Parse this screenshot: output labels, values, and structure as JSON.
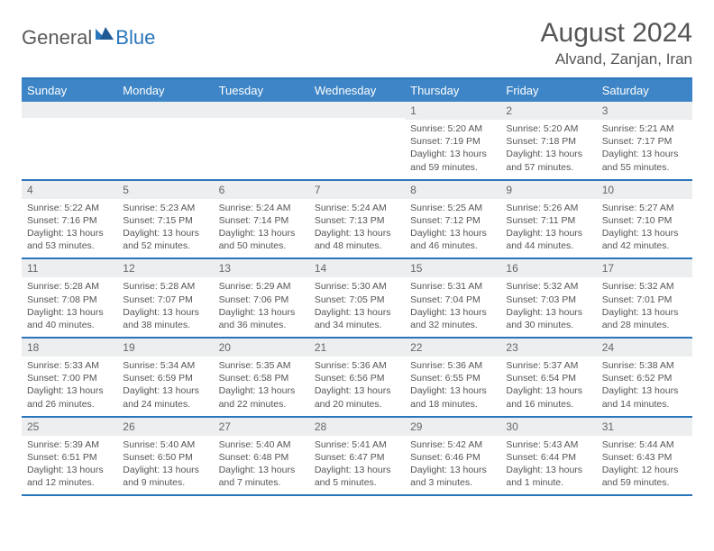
{
  "logo": {
    "text1": "General",
    "text2": "Blue"
  },
  "title": "August 2024",
  "location": "Alvand, Zanjan, Iran",
  "colors": {
    "header_bg": "#3d85c6",
    "border": "#2a75bb",
    "daynum_bg": "#eceeef",
    "text": "#555555",
    "logo_gray": "#5a5a5a",
    "logo_blue": "#2a75bb"
  },
  "dow": [
    "Sunday",
    "Monday",
    "Tuesday",
    "Wednesday",
    "Thursday",
    "Friday",
    "Saturday"
  ],
  "weeks": [
    [
      {
        "n": "",
        "sr": "",
        "ss": "",
        "dl": ""
      },
      {
        "n": "",
        "sr": "",
        "ss": "",
        "dl": ""
      },
      {
        "n": "",
        "sr": "",
        "ss": "",
        "dl": ""
      },
      {
        "n": "",
        "sr": "",
        "ss": "",
        "dl": ""
      },
      {
        "n": "1",
        "sr": "Sunrise: 5:20 AM",
        "ss": "Sunset: 7:19 PM",
        "dl": "Daylight: 13 hours and 59 minutes."
      },
      {
        "n": "2",
        "sr": "Sunrise: 5:20 AM",
        "ss": "Sunset: 7:18 PM",
        "dl": "Daylight: 13 hours and 57 minutes."
      },
      {
        "n": "3",
        "sr": "Sunrise: 5:21 AM",
        "ss": "Sunset: 7:17 PM",
        "dl": "Daylight: 13 hours and 55 minutes."
      }
    ],
    [
      {
        "n": "4",
        "sr": "Sunrise: 5:22 AM",
        "ss": "Sunset: 7:16 PM",
        "dl": "Daylight: 13 hours and 53 minutes."
      },
      {
        "n": "5",
        "sr": "Sunrise: 5:23 AM",
        "ss": "Sunset: 7:15 PM",
        "dl": "Daylight: 13 hours and 52 minutes."
      },
      {
        "n": "6",
        "sr": "Sunrise: 5:24 AM",
        "ss": "Sunset: 7:14 PM",
        "dl": "Daylight: 13 hours and 50 minutes."
      },
      {
        "n": "7",
        "sr": "Sunrise: 5:24 AM",
        "ss": "Sunset: 7:13 PM",
        "dl": "Daylight: 13 hours and 48 minutes."
      },
      {
        "n": "8",
        "sr": "Sunrise: 5:25 AM",
        "ss": "Sunset: 7:12 PM",
        "dl": "Daylight: 13 hours and 46 minutes."
      },
      {
        "n": "9",
        "sr": "Sunrise: 5:26 AM",
        "ss": "Sunset: 7:11 PM",
        "dl": "Daylight: 13 hours and 44 minutes."
      },
      {
        "n": "10",
        "sr": "Sunrise: 5:27 AM",
        "ss": "Sunset: 7:10 PM",
        "dl": "Daylight: 13 hours and 42 minutes."
      }
    ],
    [
      {
        "n": "11",
        "sr": "Sunrise: 5:28 AM",
        "ss": "Sunset: 7:08 PM",
        "dl": "Daylight: 13 hours and 40 minutes."
      },
      {
        "n": "12",
        "sr": "Sunrise: 5:28 AM",
        "ss": "Sunset: 7:07 PM",
        "dl": "Daylight: 13 hours and 38 minutes."
      },
      {
        "n": "13",
        "sr": "Sunrise: 5:29 AM",
        "ss": "Sunset: 7:06 PM",
        "dl": "Daylight: 13 hours and 36 minutes."
      },
      {
        "n": "14",
        "sr": "Sunrise: 5:30 AM",
        "ss": "Sunset: 7:05 PM",
        "dl": "Daylight: 13 hours and 34 minutes."
      },
      {
        "n": "15",
        "sr": "Sunrise: 5:31 AM",
        "ss": "Sunset: 7:04 PM",
        "dl": "Daylight: 13 hours and 32 minutes."
      },
      {
        "n": "16",
        "sr": "Sunrise: 5:32 AM",
        "ss": "Sunset: 7:03 PM",
        "dl": "Daylight: 13 hours and 30 minutes."
      },
      {
        "n": "17",
        "sr": "Sunrise: 5:32 AM",
        "ss": "Sunset: 7:01 PM",
        "dl": "Daylight: 13 hours and 28 minutes."
      }
    ],
    [
      {
        "n": "18",
        "sr": "Sunrise: 5:33 AM",
        "ss": "Sunset: 7:00 PM",
        "dl": "Daylight: 13 hours and 26 minutes."
      },
      {
        "n": "19",
        "sr": "Sunrise: 5:34 AM",
        "ss": "Sunset: 6:59 PM",
        "dl": "Daylight: 13 hours and 24 minutes."
      },
      {
        "n": "20",
        "sr": "Sunrise: 5:35 AM",
        "ss": "Sunset: 6:58 PM",
        "dl": "Daylight: 13 hours and 22 minutes."
      },
      {
        "n": "21",
        "sr": "Sunrise: 5:36 AM",
        "ss": "Sunset: 6:56 PM",
        "dl": "Daylight: 13 hours and 20 minutes."
      },
      {
        "n": "22",
        "sr": "Sunrise: 5:36 AM",
        "ss": "Sunset: 6:55 PM",
        "dl": "Daylight: 13 hours and 18 minutes."
      },
      {
        "n": "23",
        "sr": "Sunrise: 5:37 AM",
        "ss": "Sunset: 6:54 PM",
        "dl": "Daylight: 13 hours and 16 minutes."
      },
      {
        "n": "24",
        "sr": "Sunrise: 5:38 AM",
        "ss": "Sunset: 6:52 PM",
        "dl": "Daylight: 13 hours and 14 minutes."
      }
    ],
    [
      {
        "n": "25",
        "sr": "Sunrise: 5:39 AM",
        "ss": "Sunset: 6:51 PM",
        "dl": "Daylight: 13 hours and 12 minutes."
      },
      {
        "n": "26",
        "sr": "Sunrise: 5:40 AM",
        "ss": "Sunset: 6:50 PM",
        "dl": "Daylight: 13 hours and 9 minutes."
      },
      {
        "n": "27",
        "sr": "Sunrise: 5:40 AM",
        "ss": "Sunset: 6:48 PM",
        "dl": "Daylight: 13 hours and 7 minutes."
      },
      {
        "n": "28",
        "sr": "Sunrise: 5:41 AM",
        "ss": "Sunset: 6:47 PM",
        "dl": "Daylight: 13 hours and 5 minutes."
      },
      {
        "n": "29",
        "sr": "Sunrise: 5:42 AM",
        "ss": "Sunset: 6:46 PM",
        "dl": "Daylight: 13 hours and 3 minutes."
      },
      {
        "n": "30",
        "sr": "Sunrise: 5:43 AM",
        "ss": "Sunset: 6:44 PM",
        "dl": "Daylight: 13 hours and 1 minute."
      },
      {
        "n": "31",
        "sr": "Sunrise: 5:44 AM",
        "ss": "Sunset: 6:43 PM",
        "dl": "Daylight: 12 hours and 59 minutes."
      }
    ]
  ]
}
